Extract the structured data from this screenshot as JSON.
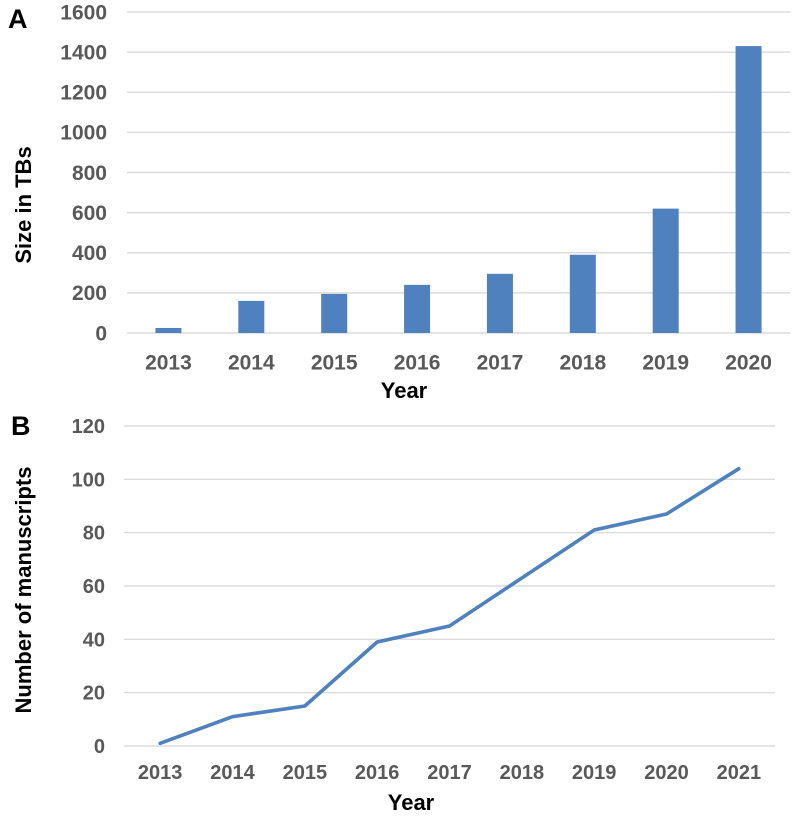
{
  "figure": {
    "panel_letters": {
      "a": "A",
      "b": "B"
    }
  },
  "style": {
    "accent_blue": "#4E81BD",
    "grid_color": "#DCDCDC",
    "tick_label_color": "#595959",
    "axis_title_color": "#000000",
    "background": "#FFFFFF"
  },
  "chart_data": [
    {
      "type": "bar",
      "panel": "A",
      "title": "",
      "categories": [
        "2013",
        "2014",
        "2015",
        "2016",
        "2017",
        "2018",
        "2019",
        "2020"
      ],
      "values": [
        25,
        160,
        195,
        240,
        295,
        390,
        620,
        1430
      ],
      "xlabel": "Year",
      "ylabel": "Size in TBs",
      "ylim": [
        0,
        1600
      ],
      "ytick_step": 200,
      "yticks": [
        0,
        200,
        400,
        600,
        800,
        1000,
        1200,
        1400,
        1600
      ],
      "grid": true,
      "legend": "none",
      "bar_color": "#4E81BD"
    },
    {
      "type": "line",
      "panel": "B",
      "title": "",
      "categories": [
        "2013",
        "2014",
        "2015",
        "2016",
        "2017",
        "2018",
        "2019",
        "2020",
        "2021"
      ],
      "values": [
        1,
        11,
        15,
        39,
        45,
        63,
        81,
        87,
        104
      ],
      "xlabel": "Year",
      "ylabel": "Number of manuscripts",
      "ylim": [
        0,
        120
      ],
      "ytick_step": 20,
      "yticks": [
        0,
        20,
        40,
        60,
        80,
        100,
        120
      ],
      "grid": true,
      "legend": "none",
      "line_color": "#4E81BD"
    }
  ]
}
